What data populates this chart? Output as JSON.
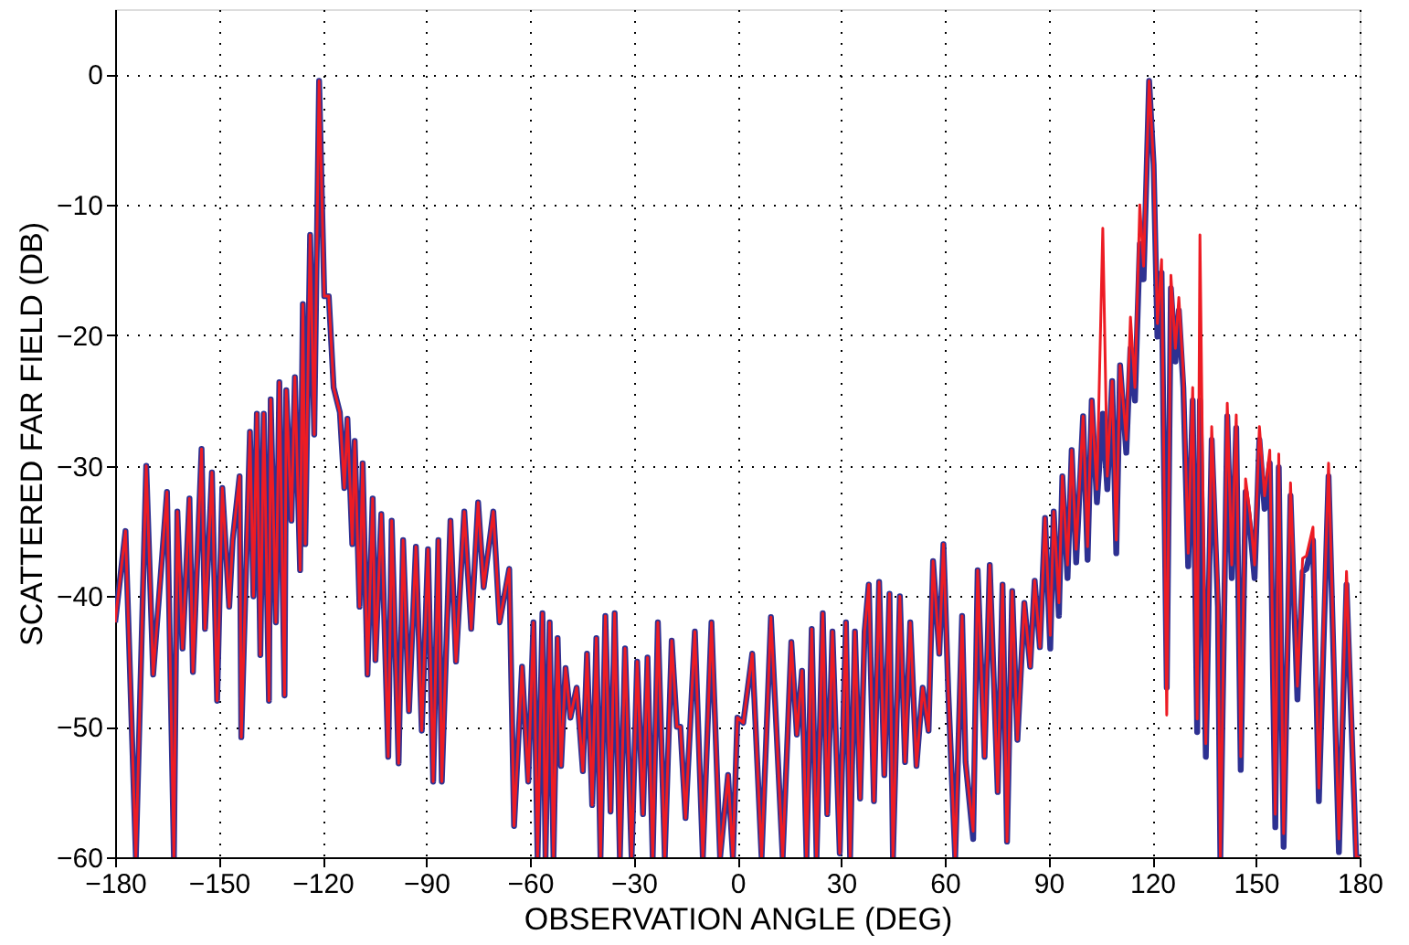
{
  "chart_data": {
    "type": "line",
    "xlabel": "OBSERVATION ANGLE (DEG)",
    "ylabel": "SCATTERED FAR FIELD (DB)",
    "xlim": [
      -180,
      180
    ],
    "xticks": [
      -180,
      -150,
      -120,
      -90,
      -60,
      -30,
      0,
      30,
      60,
      90,
      120,
      150,
      180
    ],
    "ylim": [
      -60,
      5
    ],
    "yticks": [
      -60,
      -50,
      -40,
      -30,
      -20,
      -10,
      0
    ],
    "grid": true,
    "legend": false,
    "marker": "none",
    "line_style": "solid",
    "x": [
      -180,
      -177,
      -174,
      -171,
      -169,
      -165,
      -163,
      -162,
      -160.5,
      -158.5,
      -157.5,
      -155,
      -154,
      -152,
      -150.5,
      -149,
      -147,
      -146,
      -144,
      -143.5,
      -141,
      -140,
      -139,
      -138,
      -137,
      -135.5,
      -135,
      -133.5,
      -132.5,
      -131,
      -130.5,
      -129,
      -128,
      -126.5,
      -125.7,
      -125,
      -123.6,
      -122.4,
      -121,
      -119.5,
      -118.2,
      -116.8,
      -115,
      -113.7,
      -112.8,
      -111.4,
      -110.7,
      -109.3,
      -108.4,
      -107,
      -105.5,
      -104.7,
      -103,
      -101,
      -100,
      -98,
      -96.7,
      -95,
      -93,
      -91.3,
      -89.5,
      -88,
      -86.5,
      -85.5,
      -83,
      -81.4,
      -79,
      -77,
      -75,
      -73.4,
      -70.6,
      -68.8,
      -66,
      -64.6,
      -62.3,
      -60.5,
      -59,
      -57.8,
      -56.4,
      -55.5,
      -54.3,
      -53.2,
      -52,
      -51,
      -49.7,
      -48.3,
      -46.5,
      -44.7,
      -43.5,
      -42,
      -40.8,
      -39.6,
      -38.2,
      -36.7,
      -35.5,
      -34,
      -32.5,
      -30.6,
      -29,
      -27.3,
      -26,
      -24.5,
      -23,
      -21,
      -19,
      -17.5,
      -16.5,
      -15,
      -12.3,
      -10,
      -7.5,
      -5,
      -2.7,
      -1.3,
      0,
      1.7,
      4.3,
      7,
      9.7,
      13.1,
      15.6,
      17.2,
      18.7,
      20,
      21.5,
      22.9,
      24.7,
      26,
      27.5,
      29.6,
      31.4,
      32.6,
      34,
      35.5,
      36.8,
      38,
      39.5,
      41,
      42.5,
      44,
      45,
      47,
      48.5,
      50,
      51.8,
      53.6,
      55.3,
      56.6,
      58.4,
      59.6,
      61,
      63,
      65,
      66,
      68.2,
      69.5,
      71.5,
      73,
      75.3,
      76.7,
      78,
      79.5,
      81,
      83,
      84.7,
      86,
      87.5,
      89,
      90.5,
      91.5,
      93,
      94,
      95.5,
      96.7,
      98,
      100,
      101.3,
      102.5,
      104,
      105.7,
      107,
      108.4,
      109.6,
      110.7,
      112.5,
      113.7,
      115,
      116.4,
      117.5,
      119.1,
      120.4,
      121.5,
      122.7,
      124.2,
      125.4,
      126.7,
      127.7,
      129,
      130.4,
      131.7,
      133,
      133.8,
      135.5,
      137.2,
      139,
      139.7,
      141.7,
      143,
      144.3,
      145.6,
      147,
      148.3,
      149.6,
      151,
      152.5,
      154,
      155.6,
      156.6,
      158,
      160,
      162,
      163.5,
      164.6,
      166.5,
      168.2,
      171,
      174,
      176.2,
      179,
      180
    ],
    "series": [
      {
        "color": "#2e3192",
        "values": [
          -42,
          -35,
          -60,
          -30,
          -46,
          -32,
          -60,
          -33.5,
          -44,
          -32.5,
          -45.8,
          -28.7,
          -42.5,
          -30.5,
          -48,
          -31.7,
          -40.8,
          -35.7,
          -30.8,
          -50.8,
          -27.4,
          -40,
          -26,
          -44.5,
          -26,
          -48,
          -24.9,
          -42,
          -23.6,
          -47.6,
          -24.2,
          -34.2,
          -23.2,
          -38,
          -17.6,
          -36,
          -12.3,
          -27.6,
          -0.5,
          -17,
          -17,
          -24,
          -25.9,
          -31.7,
          -26.4,
          -36,
          -28.1,
          -40.8,
          -29.8,
          -46,
          -32.5,
          -44.9,
          -33.7,
          -52.3,
          -34.2,
          -52.8,
          -35.7,
          -48.8,
          -36.2,
          -50.3,
          -36.4,
          -54.2,
          -35.7,
          -54.2,
          -34.2,
          -45,
          -33.5,
          -42.5,
          -32.8,
          -39.3,
          -33.5,
          -42,
          -37.9,
          -57.6,
          -45.4,
          -54.2,
          -42,
          -60,
          -41.3,
          -60,
          -42,
          -60,
          -43.2,
          -53,
          -45.5,
          -49.3,
          -47,
          -53.4,
          -44.4,
          -56,
          -43.2,
          -60,
          -41.5,
          -56.5,
          -41.3,
          -60,
          -44,
          -60,
          -45,
          -56.7,
          -44.7,
          -60,
          -42,
          -60,
          -43.4,
          -50,
          -50,
          -57,
          -42.7,
          -60,
          -42,
          -60,
          -53.7,
          -60,
          -49.3,
          -49.7,
          -44.4,
          -60,
          -41.6,
          -60,
          -43.5,
          -50.6,
          -45.7,
          -60,
          -42.5,
          -60,
          -41.3,
          -56.7,
          -42.7,
          -59.7,
          -42,
          -60,
          -42.7,
          -55.5,
          -42.7,
          -39.1,
          -55.7,
          -38.9,
          -53.7,
          -39.8,
          -60,
          -40,
          -52.7,
          -42,
          -53,
          -47,
          -50.3,
          -37.3,
          -44.4,
          -36,
          -47.3,
          -60,
          -41.5,
          -52.7,
          -58.6,
          -38,
          -52.3,
          -37.6,
          -55,
          -39.1,
          -58.8,
          -39.6,
          -51,
          -40.5,
          -45.4,
          -38.8,
          -43.9,
          -34,
          -44,
          -33.5,
          -41.5,
          -30.8,
          -38.6,
          -28.8,
          -37.4,
          -26.2,
          -37.2,
          -25,
          -32.8,
          -26,
          -31.8,
          -23.5,
          -36.7,
          -22.3,
          -29,
          -21,
          -25,
          -13,
          -15.7,
          -0.5,
          -6.9,
          -20.1,
          -15.2,
          -47,
          -16.4,
          -22,
          -18.1,
          -24,
          -37.7,
          -25,
          -50.4,
          -25,
          -52.3,
          -28,
          -40.8,
          -60,
          -26.2,
          -38.6,
          -27.1,
          -53.3,
          -32,
          -34.7,
          -38.6,
          -28,
          -33.3,
          -29.8,
          -57.7,
          -30.1,
          -59.2,
          -32.3,
          -47.9,
          -38.1,
          -37.9,
          -35.7,
          -55.7,
          -30.8,
          -59.6,
          -39.1,
          -60,
          -60
        ]
      },
      {
        "color": "#ed1c24",
        "values": [
          -42,
          -35,
          -60,
          -30,
          -46,
          -32,
          -60,
          -33.5,
          -44,
          -32.5,
          -45.8,
          -28.7,
          -42.5,
          -30.5,
          -48,
          -31.7,
          -40.8,
          -35.7,
          -30.8,
          -50.8,
          -27.4,
          -40,
          -26,
          -44.5,
          -26,
          -48,
          -24.9,
          -42,
          -23.6,
          -47.6,
          -24.2,
          -34.2,
          -23.2,
          -38,
          -17.6,
          -36,
          -12.3,
          -27.6,
          -0.5,
          -17,
          -17,
          -24,
          -25.9,
          -31.7,
          -26.4,
          -36,
          -28.1,
          -40.8,
          -29.8,
          -46,
          -32.5,
          -44.9,
          -33.7,
          -52.3,
          -34.2,
          -52.8,
          -35.7,
          -48.8,
          -36.2,
          -50.3,
          -36.4,
          -54.2,
          -35.7,
          -54.2,
          -34.2,
          -45,
          -33.5,
          -42.5,
          -32.8,
          -39.3,
          -33.5,
          -42,
          -37.9,
          -57.6,
          -45.4,
          -54.2,
          -42,
          -60,
          -41.3,
          -60,
          -42,
          -60,
          -43.2,
          -53,
          -45.5,
          -49.3,
          -47,
          -53.4,
          -44.4,
          -56,
          -43.2,
          -60,
          -41.5,
          -56.5,
          -41.3,
          -60,
          -44,
          -60,
          -45,
          -56.7,
          -44.7,
          -60,
          -42,
          -60,
          -43.4,
          -50,
          -50,
          -57,
          -42.7,
          -60,
          -42,
          -60,
          -53.7,
          -60,
          -49.3,
          -49.7,
          -44.4,
          -60,
          -41.6,
          -60,
          -43.5,
          -50.6,
          -45.7,
          -60,
          -42.5,
          -60,
          -41.3,
          -56.7,
          -42.7,
          -59.7,
          -42,
          -60,
          -42.7,
          -55.5,
          -42.7,
          -39.1,
          -55.7,
          -38.9,
          -53.7,
          -39.8,
          -60,
          -40,
          -52.7,
          -42,
          -53,
          -47,
          -50.3,
          -37.3,
          -44.4,
          -36,
          -47.3,
          -60,
          -41.5,
          -52.7,
          -58,
          -38,
          -52.3,
          -37.6,
          -55,
          -39.1,
          -58.8,
          -39.6,
          -51,
          -40.5,
          -45.4,
          -38.8,
          -43.9,
          -34,
          -43,
          -33.5,
          -40.5,
          -30.8,
          -37.6,
          -28.8,
          -36.4,
          -26.2,
          -36.2,
          -25,
          -31.8,
          -11.8,
          -30.8,
          -23.5,
          -35.7,
          -22.3,
          -28,
          -18.6,
          -24,
          -10,
          -14.7,
          -0.5,
          -6.9,
          -19.1,
          -14.2,
          -49.1,
          -15.4,
          -21,
          -17.1,
          -23,
          -36.7,
          -24,
          -49.4,
          -12.3,
          -51.3,
          -27,
          -39.8,
          -60,
          -25.2,
          -37.6,
          -26.1,
          -52.3,
          -31,
          -33.7,
          -37.6,
          -27,
          -32.3,
          -28.8,
          -56.7,
          -29.1,
          -58.2,
          -31.3,
          -46.9,
          -37.1,
          -36.9,
          -34.7,
          -54.7,
          -29.8,
          -58.6,
          -38.1,
          -60,
          -60
        ]
      }
    ]
  }
}
